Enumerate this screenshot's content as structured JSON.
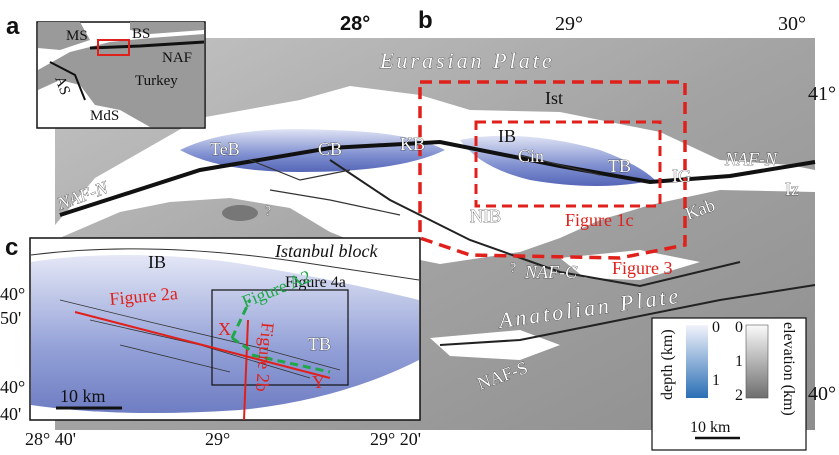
{
  "panels": [
    "a",
    "b",
    "c"
  ],
  "inset_a": {
    "labels": [
      "MS",
      "BS",
      "NAF",
      "AS",
      "Turkey",
      "MdS"
    ]
  },
  "map_b": {
    "lon_ticks": [
      "28°",
      "29°",
      "30°"
    ],
    "lat_ticks": [
      "41°",
      "40°"
    ],
    "labels": [
      "Eurasian Plate",
      "Ist",
      "IB",
      "KB",
      "TeB",
      "CB",
      "Cin",
      "TB",
      "IG",
      "NAF-N",
      "NAF-N",
      "Iz",
      "Kab",
      "NIB",
      "NAF-C",
      "Anatolian Plate",
      "NAF-S",
      "?",
      "?"
    ],
    "boxes": [
      "Figure 1c",
      "Figure 3"
    ]
  },
  "legend": {
    "depth_title": "depth (km)",
    "depth_ticks": [
      "0",
      "1"
    ],
    "elevation_title": "elevation (km)",
    "elevation_ticks": [
      "0",
      "1",
      "2"
    ],
    "scale": "10 km"
  },
  "panel_c": {
    "labels": [
      "IB",
      "Istanbul block",
      "TB",
      "X",
      "Y"
    ],
    "figures": [
      "Figure 4a",
      "Figure A2",
      "Figure 2a",
      "Figure 2b"
    ],
    "scale": "10 km",
    "lat_ticks": [
      "40°",
      "50'",
      "40°",
      "40'"
    ],
    "lon_ticks": [
      "28° 40'",
      "29°",
      "29° 20'"
    ]
  }
}
